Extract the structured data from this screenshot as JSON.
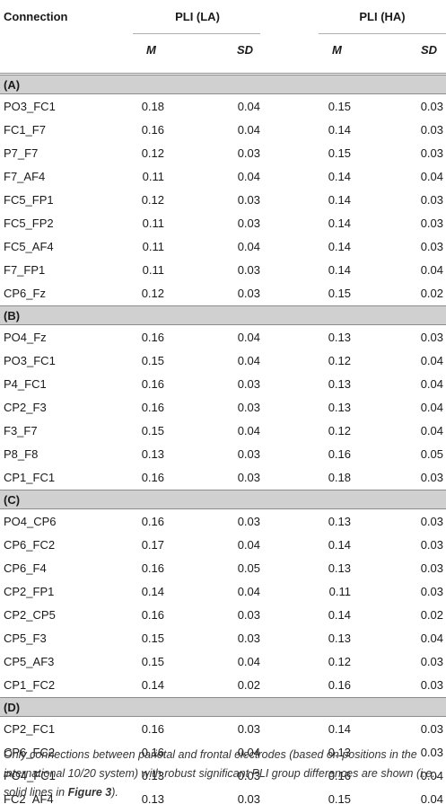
{
  "header": {
    "connection": "Connection",
    "group_la": "PLI (LA)",
    "group_ha": "PLI (HA)",
    "m": "M",
    "sd": "SD"
  },
  "sections": [
    {
      "label": "(A)",
      "rows": [
        [
          "PO3_FC1",
          "0.18",
          "0.04",
          "0.15",
          "0.03"
        ],
        [
          "FC1_F7",
          "0.16",
          "0.04",
          "0.14",
          "0.03"
        ],
        [
          "P7_F7",
          "0.12",
          "0.03",
          "0.15",
          "0.03"
        ],
        [
          "F7_AF4",
          "0.11",
          "0.04",
          "0.14",
          "0.04"
        ],
        [
          "FC5_FP1",
          "0.12",
          "0.03",
          "0.14",
          "0.03"
        ],
        [
          "FC5_FP2",
          "0.11",
          "0.03",
          "0.14",
          "0.03"
        ],
        [
          "FC5_AF4",
          "0.11",
          "0.04",
          "0.14",
          "0.03"
        ],
        [
          "F7_FP1",
          "0.11",
          "0.03",
          "0.14",
          "0.04"
        ],
        [
          "CP6_Fz",
          "0.12",
          "0.03",
          "0.15",
          "0.02"
        ]
      ]
    },
    {
      "label": "(B)",
      "rows": [
        [
          "PO4_Fz",
          "0.16",
          "0.04",
          "0.13",
          "0.03"
        ],
        [
          "PO3_FC1",
          "0.15",
          "0.04",
          "0.12",
          "0.04"
        ],
        [
          "P4_FC1",
          "0.16",
          "0.03",
          "0.13",
          "0.04"
        ],
        [
          "CP2_F3",
          "0.16",
          "0.03",
          "0.13",
          "0.04"
        ],
        [
          "F3_F7",
          "0.15",
          "0.04",
          "0.12",
          "0.04"
        ],
        [
          "P8_F8",
          "0.13",
          "0.03",
          "0.16",
          "0.05"
        ],
        [
          "CP1_FC1",
          "0.16",
          "0.03",
          "0.18",
          "0.03"
        ]
      ]
    },
    {
      "label": "(C)",
      "rows": [
        [
          "PO4_CP6",
          "0.16",
          "0.03",
          "0.13",
          "0.03"
        ],
        [
          "CP6_FC2",
          "0.17",
          "0.04",
          "0.14",
          "0.03"
        ],
        [
          "CP6_F4",
          "0.16",
          "0.05",
          "0.13",
          "0.03"
        ],
        [
          "CP2_FP1",
          "0.14",
          "0.04",
          "0.11",
          "0.03"
        ],
        [
          "CP2_CP5",
          "0.16",
          "0.03",
          "0.14",
          "0.02"
        ],
        [
          "CP5_F3",
          "0.15",
          "0.03",
          "0.13",
          "0.04"
        ],
        [
          "CP5_AF3",
          "0.15",
          "0.04",
          "0.12",
          "0.03"
        ],
        [
          "CP1_FC2",
          "0.14",
          "0.02",
          "0.16",
          "0.03"
        ]
      ]
    },
    {
      "label": "(D)",
      "rows": [
        [
          "CP2_FC1",
          "0.16",
          "0.03",
          "0.14",
          "0.03"
        ],
        [
          "CP6_FC2",
          "0.16",
          "0.04",
          "0.13",
          "0.03"
        ],
        [
          "PO4_FC1",
          "0.13",
          "0.03",
          "0.16",
          "0.04"
        ],
        [
          "FC2_AF4",
          "0.13",
          "0.03",
          "0.15",
          "0.04"
        ]
      ]
    }
  ],
  "footnote": {
    "text_before": "Only connections between parietal and frontal electrodes (based on positions in the international 10/20 system) with robust significant PLI group differences are shown (i.e., solid lines in ",
    "figure_ref": "Figure 3",
    "text_after": ")."
  }
}
